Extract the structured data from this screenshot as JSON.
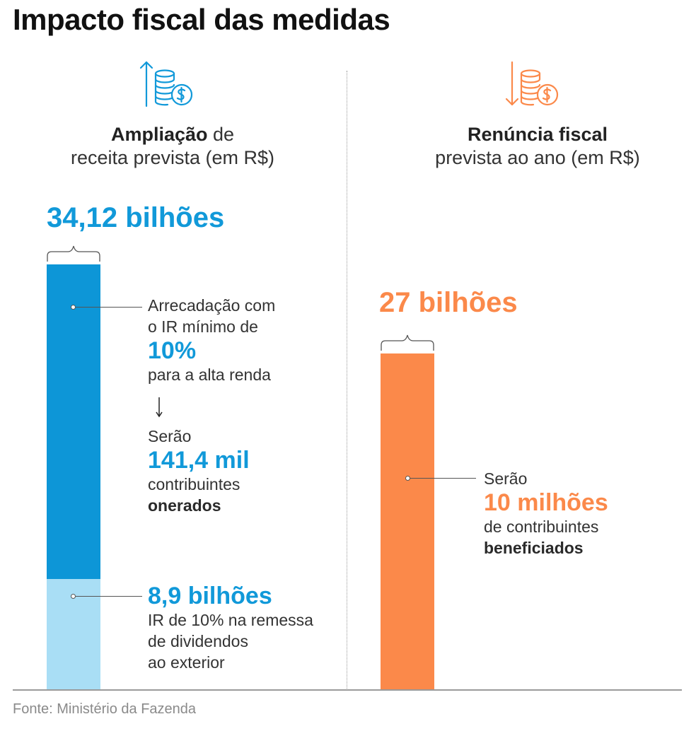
{
  "title": "Impacto fiscal das medidas",
  "left": {
    "icon": "coins-up-arrow-icon",
    "heading_bold": "Ampliação",
    "heading_rest": " de",
    "heading_line2": "receita prevista (em R$)",
    "total_label": "34,12 bilhões",
    "segment1": {
      "line1": "Arrecadação com",
      "line2": "o IR mínimo de",
      "highlight": "10%",
      "line3": "para a alta renda",
      "sub_intro": "Serão",
      "sub_highlight": "141,4 mil",
      "sub_line1": "contribuintes",
      "sub_line2_bold": "onerados"
    },
    "segment2": {
      "highlight": "8,9 bilhões",
      "line1": "IR de 10% na remessa",
      "line2": "de dividendos",
      "line3": "ao exterior"
    }
  },
  "right": {
    "icon": "coins-down-arrow-icon",
    "heading_bold": "Renúncia fiscal",
    "heading_line2": "prevista ao ano (em R$)",
    "total_label": "27 bilhões",
    "detail": {
      "intro": "Serão",
      "highlight": "10 milhões",
      "line1": "de contribuintes",
      "line2_bold": "beneficiados"
    }
  },
  "source": "Fonte: Ministério da Fazenda",
  "colors": {
    "blue_dark": "#0d96d7",
    "blue_light": "#a9def5",
    "blue_text": "#1199d9",
    "orange": "#fb894a"
  },
  "chart_data": {
    "type": "bar",
    "unit": "bilhões (R$)",
    "categories": [
      "Ampliação de receita prevista (em R$)",
      "Renúncia fiscal prevista ao ano (em R$)"
    ],
    "bars": [
      {
        "category": "Ampliação de receita prevista (em R$)",
        "total": 34.12,
        "segments": [
          {
            "value": 25.22,
            "color": "#0d96d7"
          },
          {
            "value": 8.9,
            "color": "#a9def5"
          }
        ]
      },
      {
        "category": "Renúncia fiscal prevista ao ano (em R$)",
        "total": 27,
        "segments": [
          {
            "value": 27,
            "color": "#fb894a"
          }
        ]
      }
    ]
  }
}
